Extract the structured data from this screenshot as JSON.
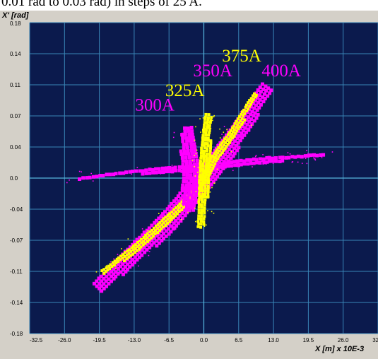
{
  "header_fragment": "0.01 rad to 0.03 rad) in steps of 25 A.",
  "colors": {
    "background": "#0b1a4d",
    "grid": "#3a86b8",
    "magenta": "#ff00ff",
    "yellow": "#ffff00",
    "frame": "#d4d0c8"
  },
  "chart_data": {
    "type": "scatter",
    "title": "",
    "xlabel": "X [m] x 10E-3",
    "ylabel": "X' [rad]",
    "xlim": [
      -32.5,
      32.5
    ],
    "ylim": [
      -0.18,
      0.18
    ],
    "x_ticks": [
      "-32.5",
      "-26.0",
      "-19.5",
      "-13.0",
      "-6.5",
      "0.0",
      "6.5",
      "13.0",
      "19.5",
      "26.0",
      "32.5"
    ],
    "y_ticks": [
      "0.18",
      "0.14",
      "0.11",
      "0.07",
      "0.04",
      "0.0",
      "-0.04",
      "-0.07",
      "-0.11",
      "-0.14",
      "-0.18"
    ],
    "grid": true,
    "annotations": [
      {
        "text": "300A",
        "color": "magenta",
        "x": -12.8,
        "y": 0.078
      },
      {
        "text": "325A",
        "color": "yellow",
        "x": -7.2,
        "y": 0.095
      },
      {
        "text": "350A",
        "color": "magenta",
        "x": -2.0,
        "y": 0.118
      },
      {
        "text": "375A",
        "color": "yellow",
        "x": 3.4,
        "y": 0.135
      },
      {
        "text": "400A",
        "color": "magenta",
        "x": 10.8,
        "y": 0.118
      }
    ],
    "series": [
      {
        "name": "300A",
        "color": "magenta",
        "values": [
          [
            -23.4,
            0.0
          ],
          [
            -16.0,
            0.006
          ],
          [
            -8.0,
            0.011
          ],
          [
            0.0,
            0.014
          ],
          [
            6.0,
            0.019
          ],
          [
            12.0,
            0.023
          ],
          [
            18.0,
            0.025
          ],
          [
            22.0,
            0.028
          ]
        ]
      },
      {
        "name": "325A",
        "color": "yellow",
        "values": [
          [
            -19.0,
            -0.108
          ],
          [
            -13.0,
            -0.08
          ],
          [
            -6.5,
            -0.045
          ],
          [
            -2.0,
            -0.018
          ],
          [
            0.0,
            0.0
          ],
          [
            2.0,
            0.025
          ],
          [
            5.0,
            0.052
          ],
          [
            9.5,
            0.098
          ]
        ]
      },
      {
        "name": "350A",
        "color": "magenta",
        "values": [
          [
            -20.0,
            -0.125
          ],
          [
            -14.0,
            -0.09
          ],
          [
            -7.0,
            -0.05
          ],
          [
            -2.0,
            -0.015
          ],
          [
            0.0,
            0.0
          ],
          [
            3.5,
            0.03
          ],
          [
            7.0,
            0.062
          ],
          [
            11.5,
            0.107
          ]
        ]
      },
      {
        "name": "375A",
        "color": "yellow",
        "values": [
          [
            -0.8,
            -0.055
          ],
          [
            -0.3,
            -0.02
          ],
          [
            0.0,
            0.015
          ],
          [
            0.3,
            0.045
          ],
          [
            0.6,
            0.075
          ]
        ]
      },
      {
        "name": "400A",
        "color": "magenta",
        "values": [
          [
            -3.5,
            0.06
          ],
          [
            -3.2,
            0.03
          ],
          [
            -3.0,
            0.01
          ],
          [
            -3.0,
            -0.01
          ],
          [
            -3.2,
            -0.035
          ]
        ]
      }
    ]
  }
}
